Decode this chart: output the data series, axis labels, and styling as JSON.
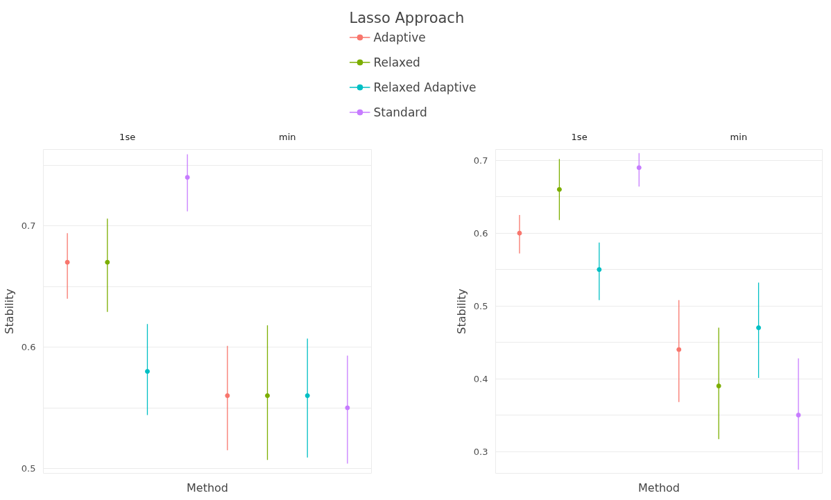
{
  "chart_data": [
    {
      "type": "scatter",
      "xlabel": "Method",
      "ylabel": "Stability",
      "legend_title": "Lasso Approach",
      "legend": "top",
      "marker": "circle",
      "grid": "y",
      "tick_labels": "y",
      "annotations": [
        "1se",
        "min"
      ],
      "categories": [
        null,
        null,
        null,
        null,
        null,
        null,
        null,
        null
      ],
      "ylim": [
        0.496,
        0.763
      ],
      "yticks": [
        0.5,
        {
          "value": 0.55,
          "label": null
        },
        0.6,
        {
          "value": 0.65,
          "label": null
        },
        0.7,
        {
          "value": 0.75,
          "label": null
        }
      ],
      "series": [
        {
          "name": "Adaptive",
          "color": "#f8766d",
          "values": [
            0.67,
            null,
            null,
            null,
            0.56,
            null,
            null,
            null
          ],
          "errors": [
            [
              0.64,
              0.694
            ],
            null,
            null,
            null,
            [
              0.515,
              0.601
            ],
            null,
            null,
            null
          ]
        },
        {
          "name": "Relaxed",
          "color": "#7cae00",
          "values": [
            null,
            0.67,
            null,
            null,
            null,
            0.56,
            null,
            null
          ],
          "errors": [
            null,
            [
              0.629,
              0.706
            ],
            null,
            null,
            null,
            [
              0.507,
              0.618
            ],
            null,
            null
          ]
        },
        {
          "name": "Relaxed Adaptive",
          "color": "#00bfc4",
          "values": [
            null,
            null,
            0.58,
            null,
            null,
            null,
            0.56,
            null
          ],
          "errors": [
            null,
            null,
            [
              0.544,
              0.619
            ],
            null,
            null,
            null,
            [
              0.509,
              0.607
            ],
            null
          ]
        },
        {
          "name": "Standard",
          "color": "#c77cff",
          "values": [
            null,
            null,
            null,
            0.74,
            null,
            null,
            null,
            0.55
          ],
          "errors": [
            null,
            null,
            null,
            [
              0.712,
              0.759
            ],
            null,
            null,
            null,
            [
              0.504,
              0.593
            ]
          ]
        }
      ]
    },
    {
      "type": "scatter",
      "xlabel": "Method",
      "ylabel": "Stability",
      "marker": "circle",
      "grid": "y",
      "tick_labels": "y",
      "annotations": [
        "1se",
        "min"
      ],
      "categories": [
        null,
        null,
        null,
        null,
        null,
        null,
        null,
        null
      ],
      "ylim": [
        0.27,
        0.715
      ],
      "yticks": [
        0.3,
        {
          "value": 0.35,
          "label": null
        },
        0.4,
        {
          "value": 0.45,
          "label": null
        },
        0.5,
        {
          "value": 0.55,
          "label": null
        },
        0.6,
        {
          "value": 0.65,
          "label": null
        },
        0.7
      ],
      "series": [
        {
          "color": "#f8766d",
          "values": [
            0.6,
            null,
            null,
            null,
            0.44,
            null,
            null,
            null
          ],
          "errors": [
            [
              0.572,
              0.625
            ],
            null,
            null,
            null,
            [
              0.368,
              0.508
            ],
            null,
            null,
            null
          ]
        },
        {
          "color": "#7cae00",
          "values": [
            null,
            0.66,
            null,
            null,
            null,
            0.39,
            null,
            null
          ],
          "errors": [
            null,
            [
              0.618,
              0.702
            ],
            null,
            null,
            null,
            [
              0.317,
              0.47
            ],
            null,
            null
          ]
        },
        {
          "color": "#00bfc4",
          "values": [
            null,
            null,
            0.55,
            null,
            null,
            null,
            0.47,
            null
          ],
          "errors": [
            null,
            null,
            [
              0.508,
              0.587
            ],
            null,
            null,
            null,
            [
              0.401,
              0.532
            ],
            null
          ]
        },
        {
          "color": "#c77cff",
          "values": [
            null,
            null,
            null,
            0.69,
            null,
            null,
            null,
            0.35
          ],
          "errors": [
            null,
            null,
            null,
            [
              0.664,
              0.71
            ],
            null,
            null,
            null,
            [
              0.275,
              0.428
            ]
          ]
        }
      ]
    }
  ]
}
